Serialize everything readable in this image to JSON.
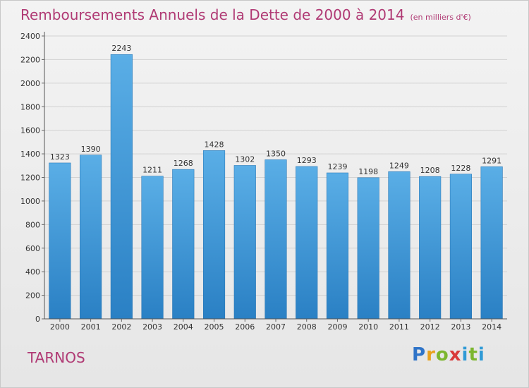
{
  "title": "Remboursements Annuels de la Dette de 2000 à 2014",
  "unit_label": "(en milliers d'€)",
  "commune": "TARNOS",
  "logo": {
    "text": "Proxiti"
  },
  "colors": {
    "bar_light": "#5aaee6",
    "bar_dark": "#2a80c4",
    "title": "#b03a74",
    "grid": "#d2d2d2"
  },
  "chart_data": {
    "type": "bar",
    "categories": [
      "2000",
      "2001",
      "2002",
      "2003",
      "2004",
      "2005",
      "2006",
      "2007",
      "2008",
      "2009",
      "2010",
      "2011",
      "2012",
      "2013",
      "2014"
    ],
    "values": [
      1323,
      1390,
      2243,
      1211,
      1268,
      1428,
      1302,
      1350,
      1293,
      1239,
      1198,
      1249,
      1208,
      1228,
      1291
    ],
    "yticks": [
      0,
      200,
      400,
      600,
      800,
      1000,
      1200,
      1400,
      1600,
      1800,
      2000,
      2200,
      2400
    ],
    "ylim": [
      0,
      2400
    ],
    "grid": true,
    "title": "Remboursements Annuels de la Dette de 2000 à 2014",
    "xlabel": "",
    "ylabel": ""
  }
}
